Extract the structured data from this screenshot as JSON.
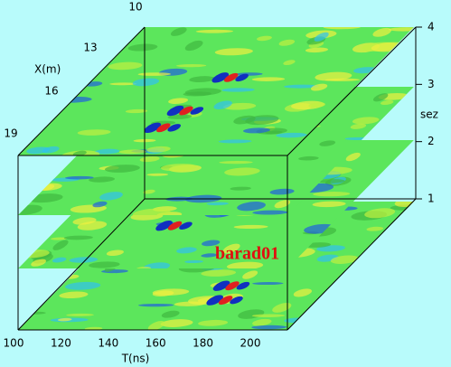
{
  "annotation": "barad01",
  "x_axis": {
    "label": "X(m)",
    "ticks": [
      10,
      13,
      16,
      19
    ]
  },
  "t_axis": {
    "label": "T(ns)",
    "ticks": [
      100,
      120,
      140,
      160,
      180,
      200
    ]
  },
  "z_axis": {
    "label": "sez",
    "ticks": [
      4,
      3,
      2,
      1
    ]
  }
}
